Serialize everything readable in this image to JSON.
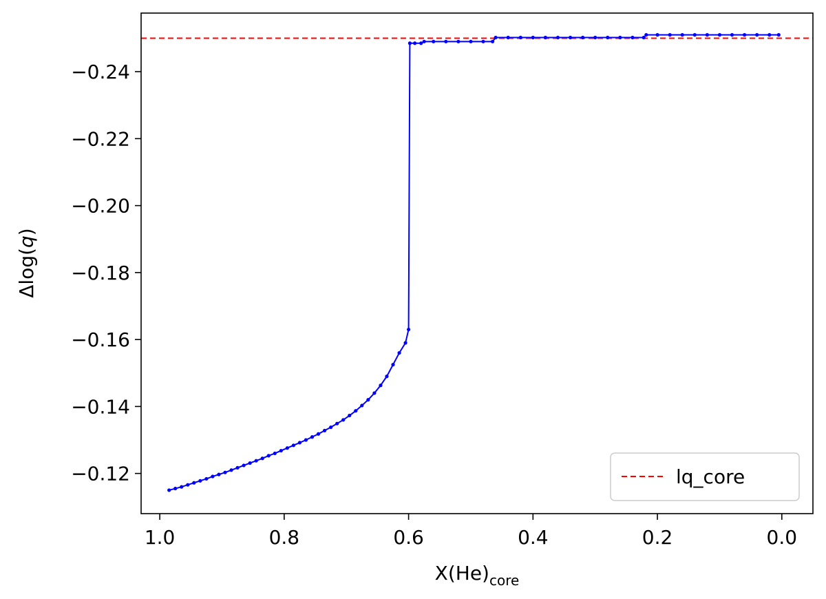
{
  "chart_data": {
    "type": "line",
    "xlabel": "X(He)",
    "xlabel_sub": "core",
    "ylabel_prefix": "Δlog(",
    "ylabel_var": "q",
    "ylabel_suffix": ")",
    "xlim": [
      1.03,
      -0.05
    ],
    "ylim": [
      -0.108,
      -0.2575
    ],
    "x_ticks": [
      1.0,
      0.8,
      0.6,
      0.4,
      0.2,
      0.0
    ],
    "x_tick_labels": [
      "1.0",
      "0.8",
      "0.6",
      "0.4",
      "0.2",
      "0.0"
    ],
    "y_ticks": [
      -0.12,
      -0.14,
      -0.16,
      -0.18,
      -0.2,
      -0.22,
      -0.24
    ],
    "y_tick_labels": [
      "−0.12",
      "−0.14",
      "−0.16",
      "−0.18",
      "−0.20",
      "−0.22",
      "−0.24"
    ],
    "series": [
      {
        "color": "#0000ff",
        "marker": "dot",
        "points": [
          [
            0.985,
            -0.115
          ],
          [
            0.975,
            -0.1155
          ],
          [
            0.965,
            -0.116
          ],
          [
            0.955,
            -0.1166
          ],
          [
            0.945,
            -0.1172
          ],
          [
            0.935,
            -0.1178
          ],
          [
            0.925,
            -0.1184
          ],
          [
            0.915,
            -0.1191
          ],
          [
            0.905,
            -0.1197
          ],
          [
            0.895,
            -0.1203
          ],
          [
            0.885,
            -0.121
          ],
          [
            0.875,
            -0.1217
          ],
          [
            0.865,
            -0.1224
          ],
          [
            0.855,
            -0.1231
          ],
          [
            0.845,
            -0.1238
          ],
          [
            0.835,
            -0.1245
          ],
          [
            0.825,
            -0.1253
          ],
          [
            0.815,
            -0.126
          ],
          [
            0.805,
            -0.1268
          ],
          [
            0.795,
            -0.1276
          ],
          [
            0.785,
            -0.1284
          ],
          [
            0.775,
            -0.1292
          ],
          [
            0.765,
            -0.13
          ],
          [
            0.755,
            -0.1309
          ],
          [
            0.745,
            -0.1318
          ],
          [
            0.735,
            -0.1328
          ],
          [
            0.725,
            -0.1338
          ],
          [
            0.715,
            -0.1349
          ],
          [
            0.705,
            -0.136
          ],
          [
            0.695,
            -0.1373
          ],
          [
            0.685,
            -0.1387
          ],
          [
            0.675,
            -0.1403
          ],
          [
            0.665,
            -0.142
          ],
          [
            0.655,
            -0.144
          ],
          [
            0.645,
            -0.1463
          ],
          [
            0.635,
            -0.149
          ],
          [
            0.625,
            -0.1525
          ],
          [
            0.615,
            -0.156
          ],
          [
            0.605,
            -0.159
          ],
          [
            0.6,
            -0.163
          ],
          [
            0.598,
            -0.2485
          ],
          [
            0.59,
            -0.2485
          ],
          [
            0.58,
            -0.2485
          ],
          [
            0.575,
            -0.249
          ],
          [
            0.56,
            -0.249
          ],
          [
            0.54,
            -0.249
          ],
          [
            0.52,
            -0.249
          ],
          [
            0.5,
            -0.249
          ],
          [
            0.48,
            -0.249
          ],
          [
            0.465,
            -0.249
          ],
          [
            0.46,
            -0.2502
          ],
          [
            0.44,
            -0.2502
          ],
          [
            0.42,
            -0.2502
          ],
          [
            0.4,
            -0.2502
          ],
          [
            0.38,
            -0.2502
          ],
          [
            0.36,
            -0.2502
          ],
          [
            0.34,
            -0.2502
          ],
          [
            0.32,
            -0.2502
          ],
          [
            0.3,
            -0.2502
          ],
          [
            0.28,
            -0.2502
          ],
          [
            0.26,
            -0.2502
          ],
          [
            0.24,
            -0.2502
          ],
          [
            0.222,
            -0.2502
          ],
          [
            0.218,
            -0.251
          ],
          [
            0.2,
            -0.251
          ],
          [
            0.18,
            -0.251
          ],
          [
            0.16,
            -0.251
          ],
          [
            0.14,
            -0.251
          ],
          [
            0.12,
            -0.251
          ],
          [
            0.1,
            -0.251
          ],
          [
            0.08,
            -0.251
          ],
          [
            0.06,
            -0.251
          ],
          [
            0.04,
            -0.251
          ],
          [
            0.02,
            -0.251
          ],
          [
            0.005,
            -0.251
          ]
        ]
      }
    ],
    "reference_line": {
      "y": -0.25,
      "color": "#ff0000",
      "style": "dashed",
      "label": "lq_core"
    },
    "legend": {
      "position": "bottom-right",
      "entries": [
        "lq_core"
      ]
    },
    "grid": false
  }
}
